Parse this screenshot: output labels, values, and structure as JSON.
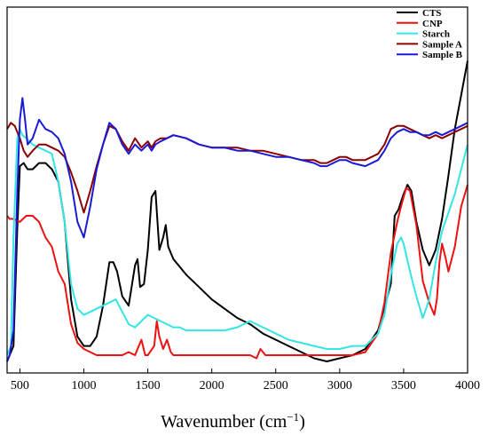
{
  "chart_data": {
    "type": "line",
    "title": "",
    "xlabel": "Wavenumber (cm",
    "xlabel_sup": "−1",
    "xlabel_close": ")",
    "ylabel": "",
    "xlim": [
      400,
      4000
    ],
    "ylim": [
      0,
      1
    ],
    "xticks": [
      500,
      1000,
      1500,
      2000,
      2500,
      3000,
      3500,
      4000
    ],
    "xtick_labels": [
      "500",
      "1000",
      "1500",
      "2000",
      "2500",
      "3000",
      "3500",
      "4000"
    ],
    "yticks_shown": false,
    "grid": false,
    "legend_position": "top-right",
    "series": [
      {
        "name": "CTS",
        "color": "#000000",
        "x": [
          400,
          450,
          480,
          500,
          530,
          560,
          600,
          650,
          700,
          750,
          800,
          850,
          900,
          950,
          1000,
          1050,
          1100,
          1150,
          1200,
          1230,
          1260,
          1300,
          1350,
          1400,
          1420,
          1440,
          1470,
          1500,
          1530,
          1560,
          1590,
          1620,
          1640,
          1660,
          1700,
          1800,
          1900,
          2000,
          2100,
          2200,
          2300,
          2400,
          2500,
          2600,
          2700,
          2800,
          2900,
          3000,
          3100,
          3200,
          3300,
          3400,
          3430,
          3460,
          3500,
          3530,
          3560,
          3600,
          3650,
          3700,
          3750,
          3800,
          3850,
          3900,
          3950,
          4000
        ],
        "y": [
          0.0,
          0.05,
          0.43,
          0.63,
          0.64,
          0.62,
          0.62,
          0.64,
          0.64,
          0.62,
          0.58,
          0.45,
          0.2,
          0.08,
          0.05,
          0.05,
          0.08,
          0.18,
          0.32,
          0.32,
          0.29,
          0.21,
          0.18,
          0.31,
          0.33,
          0.24,
          0.25,
          0.36,
          0.53,
          0.55,
          0.36,
          0.4,
          0.44,
          0.37,
          0.33,
          0.28,
          0.24,
          0.2,
          0.17,
          0.14,
          0.12,
          0.09,
          0.07,
          0.05,
          0.03,
          0.01,
          0.0,
          0.01,
          0.02,
          0.04,
          0.1,
          0.25,
          0.47,
          0.49,
          0.54,
          0.57,
          0.55,
          0.45,
          0.36,
          0.31,
          0.36,
          0.46,
          0.6,
          0.75,
          0.86,
          0.97
        ]
      },
      {
        "name": "CNP",
        "color": "#ee1111",
        "x": [
          400,
          420,
          450,
          500,
          550,
          600,
          650,
          700,
          750,
          800,
          850,
          900,
          950,
          1000,
          1100,
          1200,
          1300,
          1350,
          1400,
          1420,
          1450,
          1480,
          1500,
          1550,
          1570,
          1590,
          1620,
          1650,
          1680,
          1700,
          1750,
          1800,
          1900,
          2000,
          2100,
          2200,
          2300,
          2350,
          2380,
          2420,
          2500,
          2600,
          2700,
          2800,
          2900,
          3000,
          3100,
          3200,
          3300,
          3350,
          3400,
          3450,
          3480,
          3500,
          3520,
          3550,
          3600,
          3650,
          3700,
          3740,
          3760,
          3780,
          3800,
          3830,
          3850,
          3900,
          3950,
          4000
        ],
        "y": [
          0.47,
          0.46,
          0.46,
          0.45,
          0.47,
          0.47,
          0.45,
          0.4,
          0.37,
          0.29,
          0.25,
          0.12,
          0.06,
          0.04,
          0.02,
          0.02,
          0.02,
          0.03,
          0.02,
          0.04,
          0.07,
          0.02,
          0.02,
          0.05,
          0.13,
          0.08,
          0.04,
          0.07,
          0.03,
          0.02,
          0.02,
          0.02,
          0.02,
          0.02,
          0.02,
          0.02,
          0.02,
          0.01,
          0.04,
          0.02,
          0.02,
          0.02,
          0.02,
          0.02,
          0.02,
          0.02,
          0.02,
          0.03,
          0.09,
          0.19,
          0.35,
          0.45,
          0.5,
          0.53,
          0.56,
          0.55,
          0.44,
          0.26,
          0.19,
          0.15,
          0.2,
          0.32,
          0.38,
          0.33,
          0.29,
          0.37,
          0.5,
          0.57
        ]
      },
      {
        "name": "Starch",
        "color": "#33e5e5",
        "x": [
          400,
          430,
          450,
          480,
          500,
          520,
          550,
          600,
          650,
          700,
          750,
          800,
          850,
          900,
          950,
          1000,
          1050,
          1100,
          1150,
          1200,
          1250,
          1300,
          1350,
          1400,
          1450,
          1500,
          1550,
          1600,
          1650,
          1700,
          1750,
          1800,
          1850,
          1900,
          2000,
          2100,
          2200,
          2300,
          2400,
          2500,
          2600,
          2700,
          2800,
          2900,
          3000,
          3100,
          3200,
          3300,
          3350,
          3400,
          3450,
          3480,
          3500,
          3550,
          3600,
          3650,
          3700,
          3750,
          3800,
          3850,
          3900,
          3950,
          4000
        ],
        "y": [
          0.02,
          0.05,
          0.4,
          0.72,
          0.75,
          0.73,
          0.72,
          0.7,
          0.69,
          0.68,
          0.67,
          0.58,
          0.45,
          0.25,
          0.17,
          0.15,
          0.16,
          0.17,
          0.18,
          0.19,
          0.2,
          0.16,
          0.12,
          0.11,
          0.13,
          0.15,
          0.14,
          0.13,
          0.12,
          0.11,
          0.11,
          0.1,
          0.1,
          0.1,
          0.1,
          0.1,
          0.11,
          0.13,
          0.11,
          0.09,
          0.07,
          0.06,
          0.05,
          0.04,
          0.04,
          0.05,
          0.05,
          0.09,
          0.15,
          0.28,
          0.38,
          0.4,
          0.38,
          0.29,
          0.21,
          0.14,
          0.2,
          0.32,
          0.42,
          0.48,
          0.54,
          0.62,
          0.7
        ]
      },
      {
        "name": "Sample A",
        "color": "#8b0000",
        "x": [
          400,
          430,
          460,
          500,
          530,
          560,
          600,
          650,
          700,
          750,
          800,
          850,
          900,
          950,
          1000,
          1050,
          1100,
          1150,
          1200,
          1250,
          1300,
          1350,
          1400,
          1450,
          1500,
          1530,
          1560,
          1600,
          1650,
          1700,
          1800,
          1900,
          2000,
          2100,
          2200,
          2300,
          2400,
          2500,
          2600,
          2700,
          2800,
          2850,
          2900,
          2950,
          3000,
          3050,
          3100,
          3200,
          3300,
          3350,
          3400,
          3450,
          3500,
          3550,
          3600,
          3650,
          3700,
          3750,
          3800,
          3850,
          3900,
          3950,
          4000
        ],
        "y": [
          0.75,
          0.77,
          0.76,
          0.72,
          0.68,
          0.66,
          0.68,
          0.7,
          0.7,
          0.69,
          0.68,
          0.66,
          0.61,
          0.55,
          0.48,
          0.55,
          0.63,
          0.7,
          0.76,
          0.75,
          0.71,
          0.68,
          0.72,
          0.69,
          0.71,
          0.69,
          0.71,
          0.72,
          0.72,
          0.73,
          0.72,
          0.7,
          0.69,
          0.69,
          0.69,
          0.68,
          0.68,
          0.67,
          0.66,
          0.65,
          0.65,
          0.64,
          0.64,
          0.65,
          0.66,
          0.66,
          0.65,
          0.65,
          0.67,
          0.7,
          0.75,
          0.76,
          0.76,
          0.75,
          0.74,
          0.73,
          0.72,
          0.73,
          0.72,
          0.73,
          0.74,
          0.75,
          0.76
        ]
      },
      {
        "name": "Sample B",
        "color": "#1a1ad6",
        "x": [
          400,
          420,
          450,
          480,
          500,
          520,
          540,
          560,
          600,
          650,
          700,
          750,
          800,
          850,
          900,
          950,
          1000,
          1050,
          1100,
          1150,
          1200,
          1250,
          1300,
          1350,
          1400,
          1450,
          1500,
          1530,
          1560,
          1600,
          1650,
          1700,
          1800,
          1900,
          2000,
          2100,
          2200,
          2300,
          2400,
          2500,
          2600,
          2700,
          2800,
          2850,
          2900,
          2950,
          3000,
          3050,
          3100,
          3200,
          3300,
          3350,
          3400,
          3450,
          3500,
          3550,
          3600,
          3650,
          3700,
          3750,
          3800,
          3850,
          3900,
          3950,
          4000
        ],
        "y": [
          0.0,
          0.02,
          0.1,
          0.55,
          0.78,
          0.85,
          0.78,
          0.7,
          0.72,
          0.78,
          0.75,
          0.74,
          0.72,
          0.67,
          0.58,
          0.45,
          0.4,
          0.5,
          0.62,
          0.7,
          0.77,
          0.75,
          0.7,
          0.67,
          0.7,
          0.68,
          0.7,
          0.68,
          0.7,
          0.71,
          0.72,
          0.73,
          0.72,
          0.7,
          0.69,
          0.69,
          0.68,
          0.68,
          0.67,
          0.66,
          0.66,
          0.65,
          0.64,
          0.63,
          0.63,
          0.64,
          0.65,
          0.65,
          0.64,
          0.63,
          0.65,
          0.68,
          0.72,
          0.74,
          0.75,
          0.74,
          0.74,
          0.73,
          0.73,
          0.74,
          0.73,
          0.74,
          0.75,
          0.76,
          0.77
        ]
      }
    ]
  }
}
